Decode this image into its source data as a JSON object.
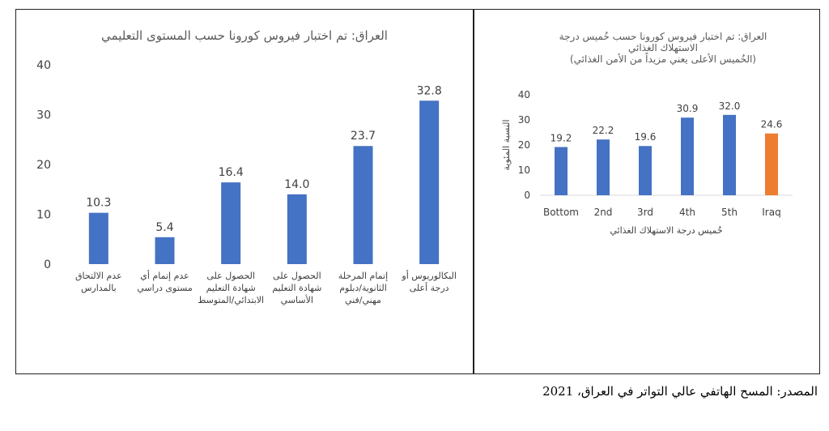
{
  "colors": {
    "bar": "#4472C4",
    "highlight": "#ED7D31",
    "axis_text": "#404040",
    "title_text": "#595959",
    "gridline": "#D9D9D9"
  },
  "source_note": "المصدر: المسح الهاتفي عالي التواتر في العراق، 2021",
  "chart_data": [
    {
      "type": "bar",
      "title": "العراق: تم اختبار فيروس كورونا حسب المستوى التعليمي",
      "xlabel": "",
      "ylabel": "",
      "ylim": [
        0,
        40
      ],
      "yticks": [
        0,
        10,
        20,
        30,
        40
      ],
      "grid": false,
      "categories": [
        [
          "عدم الالتحاق",
          "بالمدارس"
        ],
        [
          "عدم إتمام أي",
          "مستوى دراسي"
        ],
        [
          "الحصول على",
          "شهادة التعليم",
          "الابتدائي/المتوسط"
        ],
        [
          "الحصول على",
          "شهادة التعليم",
          "الأساسي"
        ],
        [
          "إتمام المرحلة",
          "الثانوية/دبلوم",
          "مهني/فني"
        ],
        [
          "البكالوريوس أو",
          "درجة أعلى"
        ]
      ],
      "values": [
        10.3,
        5.4,
        16.4,
        14.0,
        23.7,
        32.8
      ],
      "data_labels": [
        "10.3",
        "5.4",
        "16.4",
        "14.0",
        "23.7",
        "32.8"
      ]
    },
    {
      "type": "bar",
      "title": [
        "العراق: تم اختبار فيروس كورونا حسب خُميس درجة",
        "الاستهلاك الغذائي",
        "(الخُميس الأعلى يعني مزيداً من الأمن الغذائي)"
      ],
      "xlabel": "خُميس درجة الاستهلاك الغذائي",
      "ylabel": "النسبة المئوية",
      "ylim": [
        0,
        40
      ],
      "yticks": [
        0,
        10,
        20,
        30,
        40
      ],
      "grid": false,
      "categories": [
        "Bottom",
        "2nd",
        "3rd",
        "4th",
        "5th",
        "Iraq"
      ],
      "values": [
        19.2,
        22.2,
        19.6,
        30.9,
        32.0,
        24.6
      ],
      "data_labels": [
        "19.2",
        "22.2",
        "19.6",
        "30.9",
        "32.0",
        "24.6"
      ],
      "highlight_category": "Iraq"
    }
  ]
}
